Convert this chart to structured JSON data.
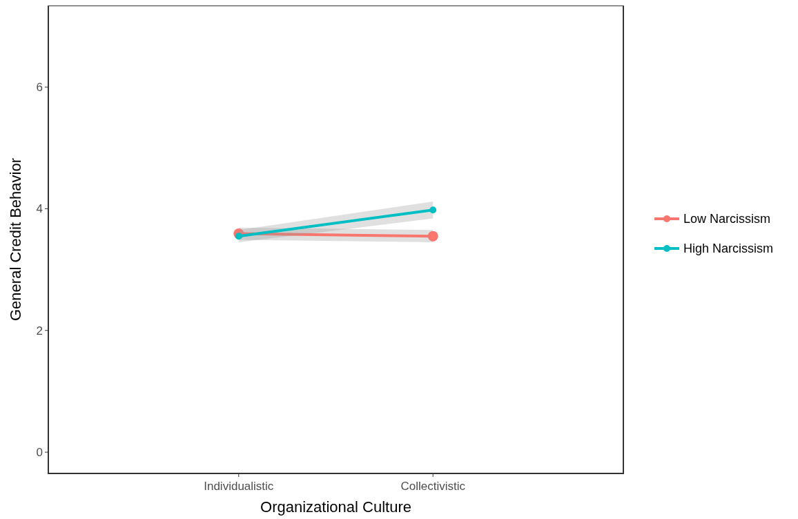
{
  "chart_data": {
    "type": "line",
    "xlabel": "Organizational Culture",
    "ylabel": "General Credit Behavior",
    "categories": [
      "Individualistic",
      "Collectivistic"
    ],
    "series": [
      {
        "name": "Low Narcissism",
        "color": "#f8766d",
        "values": [
          3.59,
          3.55
        ],
        "lower": [
          3.49,
          3.45
        ],
        "upper": [
          3.69,
          3.65
        ]
      },
      {
        "name": "High Narcissism",
        "color": "#00bfc4",
        "values": [
          3.55,
          3.98
        ],
        "lower": [
          3.45,
          3.84
        ],
        "upper": [
          3.65,
          4.12
        ]
      }
    ],
    "ylim": [
      -0.35,
      7.34
    ],
    "yticks": [
      0,
      2,
      4,
      6
    ],
    "grid": false,
    "legend": "right",
    "marker": "circle",
    "line_style": "solid"
  }
}
